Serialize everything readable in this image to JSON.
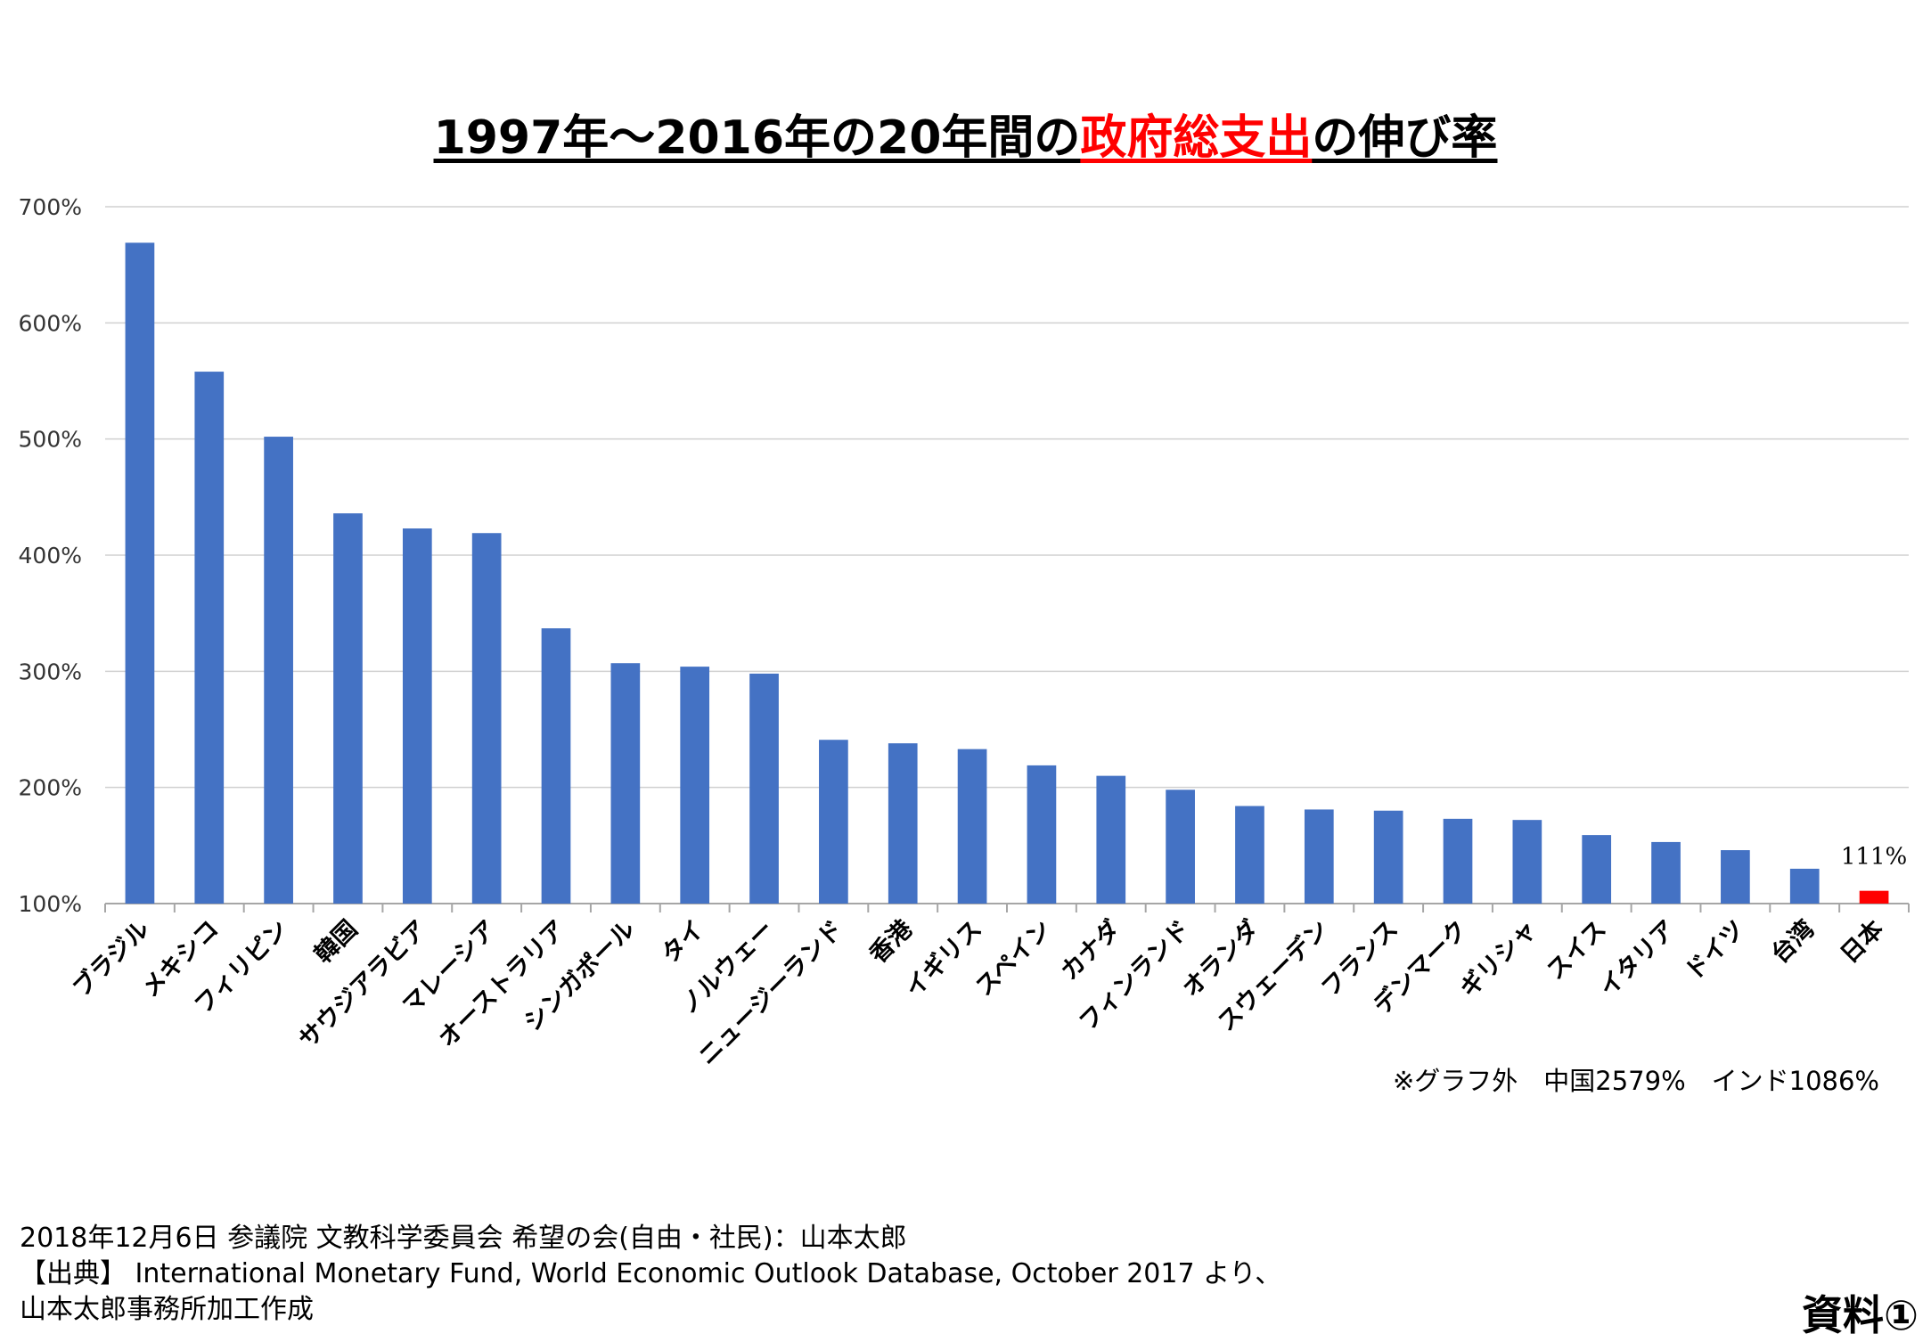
{
  "title": {
    "part1": "1997年〜2016年の20年間の",
    "highlight": "政府総支出",
    "part2": "の伸び率"
  },
  "chart_data": {
    "type": "bar",
    "title": "1997年〜2016年の20年間の政府総支出の伸び率",
    "xlabel": "",
    "ylabel": "",
    "ylim": [
      100,
      700
    ],
    "yticks": [
      "100%",
      "200%",
      "300%",
      "400%",
      "500%",
      "600%",
      "700%"
    ],
    "ytick_values": [
      100,
      200,
      300,
      400,
      500,
      600,
      700
    ],
    "grid": true,
    "categories": [
      "ブラジル",
      "メキシコ",
      "フィリピン",
      "韓国",
      "サウジアラビア",
      "マレーシア",
      "オーストラリア",
      "シンガポール",
      "タイ",
      "ノルウェー",
      "ニュージーランド",
      "香港",
      "イギリス",
      "スペイン",
      "カナダ",
      "フィンランド",
      "オランダ",
      "スウェーデン",
      "フランス",
      "デンマーク",
      "ギリシャ",
      "スイス",
      "イタリア",
      "ドイツ",
      "台湾",
      "日本"
    ],
    "values": [
      669,
      558,
      502,
      436,
      423,
      419,
      337,
      307,
      304,
      298,
      241,
      238,
      233,
      219,
      210,
      198,
      184,
      181,
      180,
      173,
      172,
      159,
      153,
      146,
      130,
      111
    ],
    "colors": {
      "default": "#4472c4",
      "highlight": "#ff0000"
    },
    "highlight_category": "日本",
    "data_labels": [
      {
        "category": "日本",
        "text": "111%"
      }
    ]
  },
  "note": "※グラフ外　中国2579%　インド1086%",
  "footer": {
    "line1": "2018年12月6日 参議院 文教科学委員会 希望の会(自由・社民)：山本太郎",
    "line2": "【出典】 International Monetary Fund, World Economic Outlook Database, October 2017 より、",
    "line3": "山本太郎事務所加工作成"
  },
  "badge": "資料①"
}
